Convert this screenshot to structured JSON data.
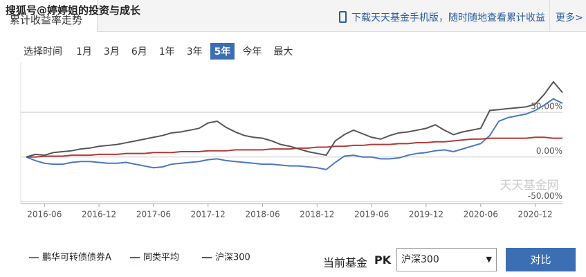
{
  "watermark": "搜狐号@婷婷姐的投资与成长",
  "header": {
    "tab": "累计收益率走势",
    "promo": "下载天天基金手机版，随时随地查看累计收益",
    "more": "更多>"
  },
  "range_selector": {
    "label": "选择时间",
    "options": [
      "1月",
      "3月",
      "6月",
      "1年",
      "3年",
      "5年",
      "今年",
      "最大"
    ],
    "active_index": 5
  },
  "chart_data": {
    "type": "line",
    "watermark": "天天基金网",
    "categories": [
      null,
      null,
      "2016-06",
      null,
      null,
      null,
      null,
      null,
      "2016-12",
      null,
      null,
      null,
      null,
      null,
      "2017-06",
      null,
      null,
      null,
      null,
      null,
      "2017-12",
      null,
      null,
      null,
      null,
      null,
      "2018-06",
      null,
      null,
      null,
      null,
      null,
      "2018-12",
      null,
      null,
      null,
      null,
      null,
      "2019-06",
      null,
      null,
      null,
      null,
      null,
      "2019-12",
      null,
      null,
      null,
      null,
      null,
      "2020-06",
      null,
      null,
      null,
      null,
      null,
      "2020-12",
      null,
      null,
      null
    ],
    "series": [
      {
        "name": "鹏华可转债债券A",
        "color": "#4a76c0",
        "values": [
          0,
          -4,
          -7,
          -8,
          -8,
          -6,
          -5,
          -5,
          -6,
          -7,
          -7,
          -6,
          -8,
          -10,
          -12,
          -11,
          -8,
          -7,
          -6,
          -5,
          -3,
          -2,
          -4,
          -5,
          -6,
          -7,
          -8,
          -8,
          -9,
          -10,
          -10,
          -11,
          -12,
          -14,
          -6,
          1,
          2,
          0,
          0,
          -2,
          -2,
          -1,
          2,
          4,
          5,
          7,
          8,
          6,
          9,
          12,
          15,
          24,
          40,
          44,
          46,
          48,
          52,
          58,
          65,
          60
        ]
      },
      {
        "name": "同类平均",
        "color": "#b03a3a",
        "values": [
          0,
          0,
          1,
          1,
          1,
          2,
          2,
          2,
          3,
          3,
          3,
          4,
          4,
          4,
          5,
          5,
          5,
          6,
          6,
          6,
          7,
          7,
          7,
          8,
          8,
          8,
          8,
          9,
          9,
          9,
          10,
          10,
          11,
          11,
          12,
          12,
          13,
          13,
          14,
          14,
          14,
          15,
          15,
          16,
          16,
          17,
          17,
          18,
          19,
          20,
          20,
          21,
          21,
          21,
          21,
          21,
          22,
          22,
          21,
          21
        ]
      },
      {
        "name": "沪深300",
        "color": "#555555",
        "values": [
          0,
          3,
          2,
          5,
          6,
          7,
          9,
          10,
          12,
          13,
          14,
          16,
          18,
          20,
          22,
          24,
          27,
          28,
          30,
          32,
          38,
          40,
          33,
          28,
          24,
          22,
          21,
          18,
          14,
          12,
          9,
          6,
          4,
          2,
          18,
          25,
          30,
          26,
          22,
          20,
          24,
          27,
          28,
          30,
          32,
          36,
          30,
          25,
          28,
          30,
          32,
          52,
          53,
          54,
          55,
          56,
          59,
          70,
          84,
          72
        ]
      }
    ],
    "ylim": [
      -52,
      98
    ],
    "yticks": [
      {
        "value": 50,
        "label": "50.00%"
      },
      {
        "value": 0,
        "label": "0.00%"
      },
      {
        "value": -50,
        "label": "-50.00%"
      }
    ],
    "grid": true
  },
  "compare": {
    "label": "当前基金",
    "pk": "PK",
    "selected": "沪深300",
    "button": "对比"
  }
}
